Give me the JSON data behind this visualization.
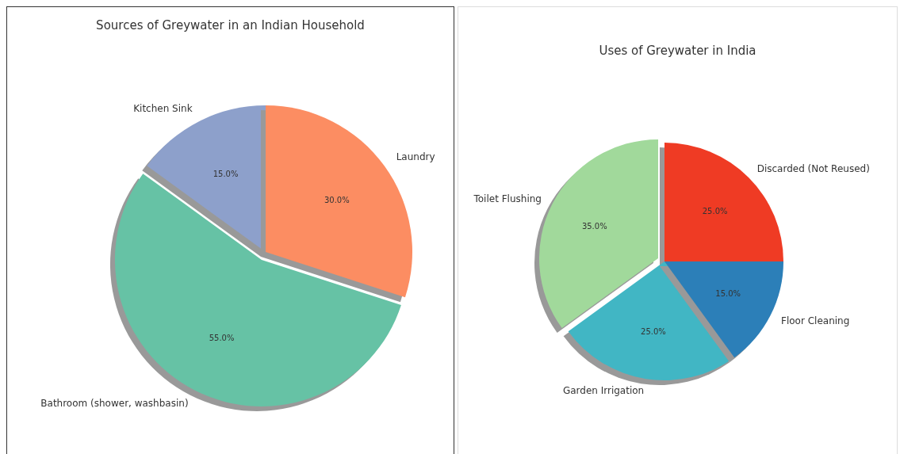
{
  "chart_data": [
    {
      "type": "pie",
      "title": "Sources of Greywater in an Indian Household",
      "categories": [
        "Kitchen Sink",
        "Bathroom (shower, washbasin)",
        "Laundry"
      ],
      "values": [
        15,
        55,
        30
      ],
      "colors": [
        "#8da0cb",
        "#66c2a5",
        "#fc8d62"
      ],
      "value_labels": [
        "15.0%",
        "55.0%",
        "30.0%"
      ]
    },
    {
      "type": "pie",
      "title": "Uses of Greywater in India",
      "categories": [
        "Discarded (Not Reused)",
        "Toilet Flushing",
        "Garden Irrigation",
        "Floor Cleaning"
      ],
      "values": [
        25,
        35,
        25,
        15
      ],
      "colors": [
        "#ef3b24",
        "#a1d99b",
        "#41b6c4",
        "#2c7fb8"
      ],
      "value_labels": [
        "25.0%",
        "35.0%",
        "25.0%",
        "15.0%"
      ]
    }
  ]
}
